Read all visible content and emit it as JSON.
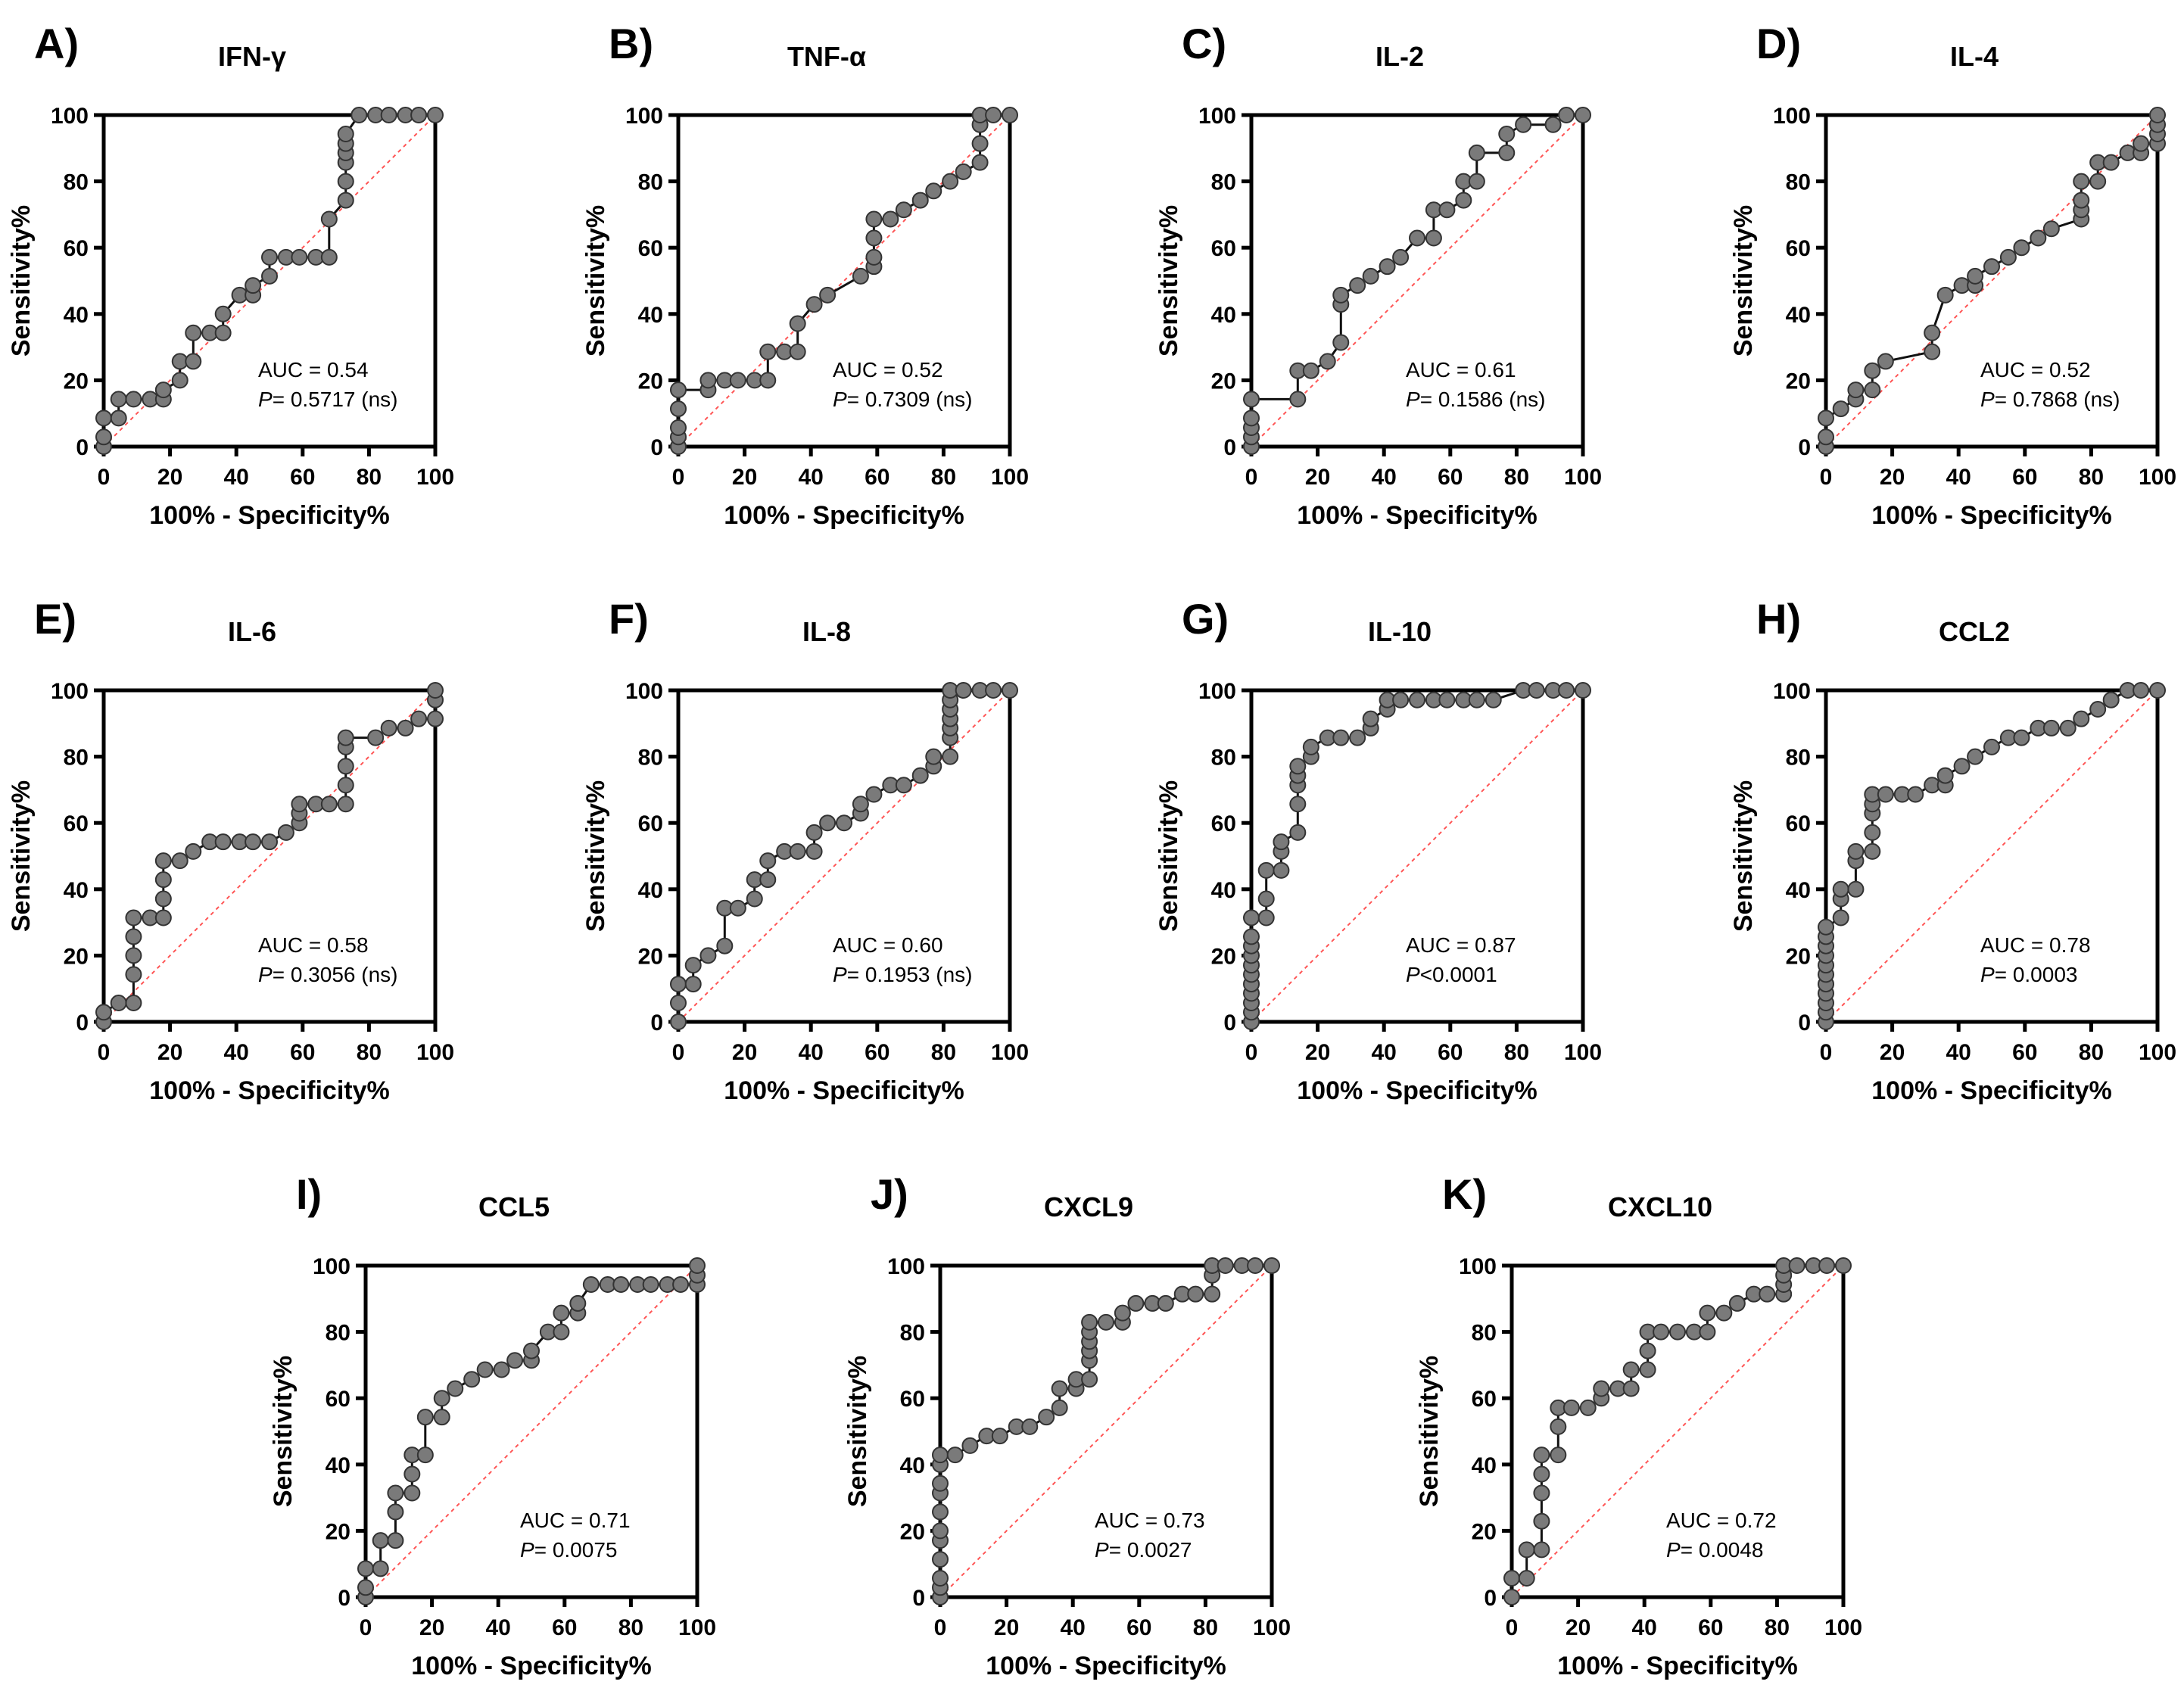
{
  "axes": {
    "xlabel": "100% - Specificity%",
    "ylabel": "Sensitivity%",
    "ticks": [
      "0",
      "20",
      "40",
      "60",
      "80",
      "100"
    ],
    "xlim": [
      0,
      100
    ],
    "ylim": [
      0,
      100
    ]
  },
  "chart_data": [
    {
      "type": "line",
      "panel": "A)",
      "title": "IFN-γ",
      "auc": "AUC = 0.54",
      "p_label": "P",
      "p_value": "= 0.5717 (ns)",
      "x": [
        0,
        0,
        0,
        4.5,
        4.5,
        9,
        14,
        18,
        18,
        23,
        23,
        27,
        27,
        32,
        36,
        36,
        41,
        45,
        45,
        50,
        50,
        55,
        59,
        64,
        68,
        68,
        73,
        73,
        73,
        73,
        73,
        73,
        77,
        82,
        86,
        91,
        95,
        100
      ],
      "y": [
        0,
        2.9,
        8.6,
        8.6,
        14.3,
        14.3,
        14.3,
        14.3,
        17.1,
        20,
        25.7,
        25.7,
        34.3,
        34.3,
        34.3,
        40,
        45.7,
        45.7,
        48.6,
        51.4,
        57.1,
        57.1,
        57.1,
        57.1,
        57.1,
        68.6,
        74.3,
        80,
        85.7,
        88.6,
        91.4,
        94.3,
        100,
        100,
        100,
        100,
        100,
        100
      ]
    },
    {
      "type": "line",
      "panel": "B)",
      "title": "TNF-α",
      "auc": "AUC = 0.52",
      "p_label": "P",
      "p_value": "= 0.7309 (ns)",
      "x": [
        0,
        0,
        0,
        0,
        0,
        9,
        9,
        14,
        18,
        23,
        27,
        27,
        32,
        36,
        36,
        41,
        45,
        55,
        59,
        59,
        59,
        59,
        64,
        68,
        73,
        77,
        82,
        86,
        91,
        91,
        91,
        91,
        95,
        100
      ],
      "y": [
        0,
        2.9,
        5.7,
        11.4,
        17.1,
        17.1,
        20,
        20,
        20,
        20,
        20,
        28.6,
        28.6,
        28.6,
        37.1,
        42.9,
        45.7,
        51.4,
        54.3,
        57.1,
        62.9,
        68.6,
        68.6,
        71.4,
        74.3,
        77.1,
        80,
        82.9,
        85.7,
        91.4,
        97.1,
        100,
        100,
        100
      ]
    },
    {
      "type": "line",
      "panel": "C)",
      "title": "IL-2",
      "auc": "AUC = 0.61",
      "p_label": "P",
      "p_value": "= 0.1586 (ns)",
      "x": [
        0,
        0,
        0,
        0,
        0,
        14,
        14,
        18,
        23,
        27,
        27,
        27,
        32,
        36,
        41,
        45,
        50,
        55,
        55,
        59,
        64,
        64,
        68,
        68,
        77,
        77,
        82,
        91,
        95,
        100
      ],
      "y": [
        0,
        2.9,
        5.7,
        8.6,
        14.3,
        14.3,
        22.9,
        22.9,
        25.7,
        31.4,
        42.9,
        45.7,
        48.6,
        51.4,
        54.3,
        57.1,
        62.9,
        62.9,
        71.4,
        71.4,
        74.3,
        80,
        80,
        88.6,
        88.6,
        94.3,
        97.1,
        97.1,
        100,
        100
      ]
    },
    {
      "type": "line",
      "panel": "D)",
      "title": "IL-4",
      "auc": "AUC = 0.52",
      "p_label": "P",
      "p_value": "= 0.7868 (ns)",
      "x": [
        0,
        0,
        0,
        4.5,
        9,
        9,
        14,
        14,
        18,
        32,
        32,
        36,
        41,
        45,
        45,
        50,
        55,
        59,
        64,
        68,
        77,
        77,
        77,
        77,
        82,
        82,
        86,
        91,
        95,
        95,
        100,
        100,
        100,
        100
      ],
      "y": [
        0,
        2.9,
        8.6,
        11.4,
        14.3,
        17.1,
        17.1,
        22.9,
        25.7,
        28.6,
        34.3,
        45.7,
        48.6,
        48.6,
        51.4,
        54.3,
        57.1,
        60,
        62.9,
        65.7,
        68.6,
        71.4,
        74.3,
        80,
        80,
        85.7,
        85.7,
        88.6,
        88.6,
        91.4,
        91.4,
        94.3,
        97.1,
        100
      ]
    },
    {
      "type": "line",
      "panel": "E)",
      "title": "IL-6",
      "auc": "AUC = 0.58",
      "p_label": "P",
      "p_value": "= 0.3056 (ns)",
      "x": [
        0,
        0,
        4.5,
        9,
        9,
        9,
        9,
        9,
        14,
        18,
        18,
        18,
        18,
        23,
        27,
        32,
        36,
        41,
        45,
        50,
        55,
        59,
        59,
        59,
        64,
        68,
        73,
        73,
        73,
        73,
        73,
        82,
        86,
        91,
        95,
        100,
        100,
        100
      ],
      "y": [
        0,
        2.9,
        5.7,
        5.7,
        14.3,
        20,
        25.7,
        31.4,
        31.4,
        31.4,
        37.1,
        42.9,
        48.6,
        48.6,
        51.4,
        54.3,
        54.3,
        54.3,
        54.3,
        54.3,
        57.1,
        60,
        62.9,
        65.7,
        65.7,
        65.7,
        65.7,
        71.4,
        77.1,
        82.9,
        85.7,
        85.7,
        88.6,
        88.6,
        91.4,
        91.4,
        97.1,
        100
      ]
    },
    {
      "type": "line",
      "panel": "F)",
      "title": "IL-8",
      "auc": "AUC = 0.60",
      "p_label": "P",
      "p_value": "= 0.1953 (ns)",
      "x": [
        0,
        0,
        0,
        4.5,
        4.5,
        9,
        14,
        14,
        18,
        23,
        23,
        27,
        27,
        32,
        36,
        41,
        41,
        45,
        50,
        55,
        55,
        59,
        64,
        68,
        73,
        77,
        77,
        82,
        82,
        82,
        82,
        82,
        82,
        82,
        86,
        91,
        95,
        100
      ],
      "y": [
        0,
        5.7,
        11.4,
        11.4,
        17.1,
        20,
        22.9,
        34.3,
        34.3,
        37.1,
        42.9,
        42.9,
        48.6,
        51.4,
        51.4,
        51.4,
        57.1,
        60,
        60,
        62.9,
        65.7,
        68.6,
        71.4,
        71.4,
        74.3,
        77.1,
        80,
        80,
        85.7,
        88.6,
        91.4,
        94.3,
        97.1,
        100,
        100,
        100,
        100,
        100
      ]
    },
    {
      "type": "line",
      "panel": "G)",
      "title": "IL-10",
      "auc": "AUC = 0.87",
      "p_label": "P",
      "p_value": "<0.0001",
      "x": [
        0,
        0,
        0,
        0,
        0,
        0,
        0,
        0,
        0,
        0,
        0,
        4.5,
        4.5,
        4.5,
        9,
        9,
        9,
        14,
        14,
        14,
        14,
        14,
        18,
        18,
        23,
        27,
        32,
        36,
        36,
        41,
        41,
        45,
        50,
        55,
        59,
        64,
        68,
        73,
        82,
        86,
        91,
        95,
        100
      ],
      "y": [
        0,
        2.9,
        5.7,
        8.6,
        11.4,
        14.3,
        17.1,
        20,
        22.9,
        25.7,
        31.4,
        31.4,
        37.1,
        45.7,
        45.7,
        51.4,
        54.3,
        57.1,
        65.7,
        71.4,
        74.3,
        77.1,
        80,
        82.9,
        85.7,
        85.7,
        85.7,
        88.6,
        91.4,
        94.3,
        97.1,
        97.1,
        97.1,
        97.1,
        97.1,
        97.1,
        97.1,
        97.1,
        100,
        100,
        100,
        100,
        100
      ]
    },
    {
      "type": "line",
      "panel": "H)",
      "title": "CCL2",
      "auc": "AUC = 0.78",
      "p_label": "P",
      "p_value": "= 0.0003",
      "x": [
        0,
        0,
        0,
        0,
        0,
        0,
        0,
        0,
        0,
        0,
        0,
        4.5,
        4.5,
        4.5,
        9,
        9,
        9,
        14,
        14,
        14,
        14,
        14,
        18,
        23,
        27,
        32,
        36,
        36,
        41,
        45,
        50,
        55,
        59,
        64,
        68,
        73,
        77,
        82,
        86,
        91,
        95,
        100
      ],
      "y": [
        0,
        2.9,
        5.7,
        8.6,
        11.4,
        14.3,
        17.1,
        20,
        22.9,
        25.7,
        28.6,
        31.4,
        37.1,
        40,
        40,
        48.6,
        51.4,
        51.4,
        57.1,
        62.9,
        65.7,
        68.6,
        68.6,
        68.6,
        68.6,
        71.4,
        71.4,
        74.3,
        77.1,
        80,
        82.9,
        85.7,
        85.7,
        88.6,
        88.6,
        88.6,
        91.4,
        94.3,
        97.1,
        100,
        100,
        100
      ]
    },
    {
      "type": "line",
      "panel": "I)",
      "title": "CCL5",
      "auc": "AUC = 0.71",
      "p_label": "P",
      "p_value": "= 0.0075",
      "x": [
        0,
        0,
        0,
        4.5,
        4.5,
        9,
        9,
        9,
        14,
        14,
        14,
        18,
        18,
        23,
        23,
        27,
        32,
        36,
        41,
        45,
        50,
        50,
        55,
        59,
        59,
        64,
        64,
        68,
        73,
        77,
        82,
        86,
        91,
        95,
        100,
        100,
        100
      ],
      "y": [
        0,
        2.9,
        8.6,
        8.6,
        17.1,
        17.1,
        25.7,
        31.4,
        31.4,
        37.1,
        42.9,
        42.9,
        54.3,
        54.3,
        60,
        62.9,
        65.7,
        68.6,
        68.6,
        71.4,
        71.4,
        74.3,
        80,
        80,
        85.7,
        85.7,
        88.6,
        94.3,
        94.3,
        94.3,
        94.3,
        94.3,
        94.3,
        94.3,
        94.3,
        97.1,
        100
      ]
    },
    {
      "type": "line",
      "panel": "J)",
      "title": "CXCL9",
      "auc": "AUC = 0.73",
      "p_label": "P",
      "p_value": "= 0.0027",
      "x": [
        0,
        0,
        0,
        0,
        0,
        0,
        0,
        0,
        0,
        0,
        0,
        4.5,
        9,
        14,
        18,
        23,
        27,
        32,
        36,
        36,
        41,
        41,
        45,
        45,
        45,
        45,
        45,
        45,
        50,
        55,
        55,
        59,
        64,
        68,
        73,
        77,
        82,
        82,
        82,
        86,
        91,
        95,
        100
      ],
      "y": [
        0,
        2.9,
        5.7,
        11.4,
        17.1,
        20,
        25.7,
        31.4,
        34.3,
        40,
        42.9,
        42.9,
        45.7,
        48.6,
        48.6,
        51.4,
        51.4,
        54.3,
        57.1,
        62.9,
        62.9,
        65.7,
        65.7,
        71.4,
        74.3,
        77.1,
        80,
        82.9,
        82.9,
        82.9,
        85.7,
        88.6,
        88.6,
        88.6,
        91.4,
        91.4,
        91.4,
        97.1,
        100,
        100,
        100,
        100,
        100
      ]
    },
    {
      "type": "line",
      "panel": "K)",
      "title": "CXCL10",
      "auc": "AUC = 0.72",
      "p_label": "P",
      "p_value": "= 0.0048",
      "x": [
        0,
        0,
        4.5,
        4.5,
        9,
        9,
        9,
        9,
        9,
        14,
        14,
        14,
        18,
        23,
        27,
        27,
        32,
        36,
        36,
        41,
        41,
        41,
        45,
        50,
        55,
        59,
        59,
        64,
        68,
        73,
        77,
        82,
        82,
        82,
        82,
        86,
        91,
        95,
        100
      ],
      "y": [
        0,
        5.7,
        5.7,
        14.3,
        14.3,
        22.9,
        31.4,
        37.1,
        42.9,
        42.9,
        51.4,
        57.1,
        57.1,
        57.1,
        60,
        62.9,
        62.9,
        62.9,
        68.6,
        68.6,
        74.3,
        80,
        80,
        80,
        80,
        80,
        85.7,
        85.7,
        88.6,
        91.4,
        91.4,
        91.4,
        94.3,
        97.1,
        100,
        100,
        100,
        100,
        100
      ]
    }
  ]
}
